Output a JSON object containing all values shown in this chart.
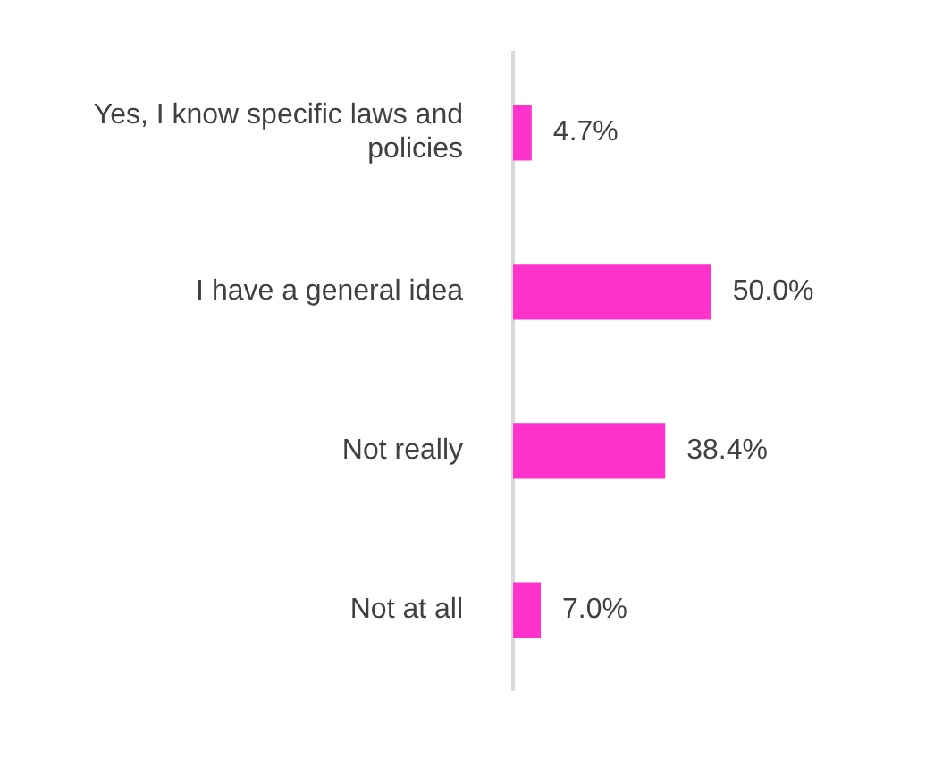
{
  "chart_data": {
    "type": "bar",
    "orientation": "horizontal",
    "categories": [
      "Yes, I know specific laws and policies",
      "I have a general idea",
      "Not really",
      "Not at all"
    ],
    "values": [
      4.7,
      50.0,
      38.4,
      7.0
    ],
    "color": "#ff33cc",
    "value_labels": [
      "4.7%",
      "50.0%",
      "38.4%",
      "7.0%"
    ],
    "tick_labels": "y",
    "legend": false
  }
}
